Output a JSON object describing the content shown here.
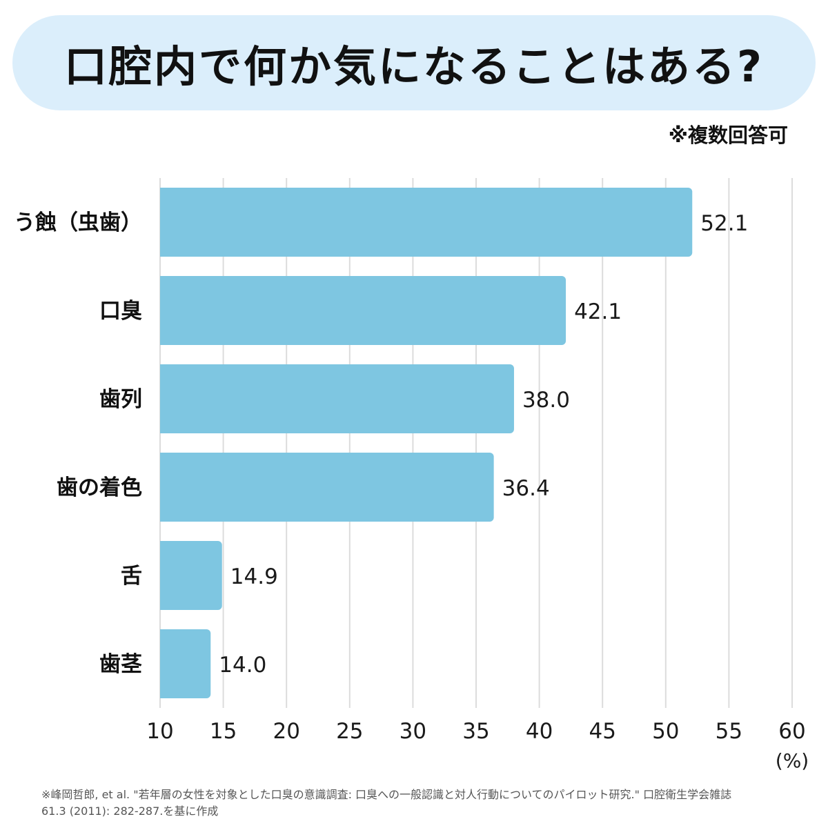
{
  "title": "口腔内で何か気になることはある?",
  "note": "※複数回答可",
  "colors": {
    "bar": "#7ec6e1",
    "banner": "#dbeefb",
    "grid": "#dcdcdc",
    "text": "#1a1a1a"
  },
  "chart_data": {
    "type": "bar",
    "orientation": "horizontal",
    "categories": [
      "う蝕（虫歯）",
      "口臭",
      "歯列",
      "歯の着色",
      "舌",
      "歯茎"
    ],
    "values": [
      52.1,
      42.1,
      38.0,
      36.4,
      14.9,
      14.0
    ],
    "value_labels": [
      "52.1",
      "42.1",
      "38.0",
      "36.4",
      "14.9",
      "14.0"
    ],
    "xlim": [
      10,
      60
    ],
    "xticks": [
      10,
      15,
      20,
      25,
      30,
      35,
      40,
      45,
      50,
      55,
      60
    ],
    "xlabel": "(%)",
    "grid": "vertical"
  },
  "footnote": {
    "line1": "※峰岡哲郎, et al. \"若年層の女性を対象とした口臭の意識調査: 口臭への一般認識と対人行動についてのパイロット研究.\" 口腔衛生学会雑誌",
    "line2": "61.3 (2011): 282-287.を基に作成"
  }
}
